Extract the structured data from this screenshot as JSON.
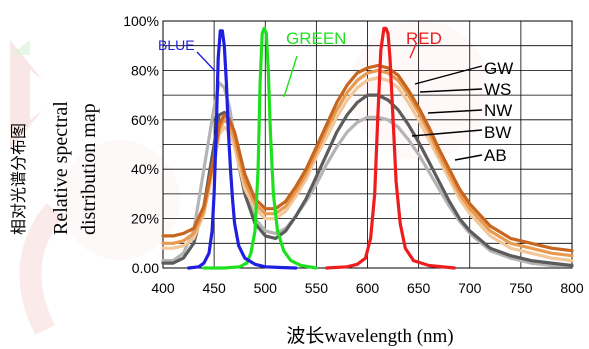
{
  "chart_data": {
    "type": "line",
    "xlabel": "波长wavelength (nm)",
    "ylabel_cjk": "相对光谱分布图",
    "ylabel_en_1": "Relative spectral",
    "ylabel_en_2": "distribution map",
    "x_ticks": [
      "400",
      "450",
      "500",
      "550",
      "600",
      "650",
      "700",
      "750",
      "800"
    ],
    "y_ticks": [
      "0.00",
      "20%",
      "40%",
      "60%",
      "80%",
      "100%"
    ],
    "xlim": [
      400,
      800
    ],
    "ylim": [
      0,
      100
    ],
    "grid": true,
    "colors": {
      "blue": "#1f1fe0",
      "green": "#1fe01f",
      "red": "#ee1c1c",
      "GW": "#c8651e",
      "WS": "#e89a50",
      "NW": "#f2c79a",
      "BW": "#5c5c5c",
      "AB": "#b4b4b4"
    },
    "series": [
      {
        "name": "BLUE",
        "x": [
          425,
          435,
          440,
          445,
          448,
          450,
          452,
          454,
          456,
          458,
          460,
          462,
          464,
          466,
          468,
          470,
          474,
          480,
          490,
          500,
          515,
          530
        ],
        "y": [
          0,
          0.5,
          2,
          6,
          15,
          30,
          55,
          85,
          96,
          96,
          90,
          75,
          55,
          40,
          28,
          18,
          9,
          4,
          1.5,
          0.5,
          0.2,
          0
        ]
      },
      {
        "name": "GREEN",
        "x": [
          440,
          460,
          475,
          482,
          486,
          490,
          493,
          495,
          497,
          499,
          501,
          503,
          505,
          508,
          512,
          518,
          525,
          535,
          550
        ],
        "y": [
          0,
          0,
          0.5,
          2,
          6,
          15,
          40,
          75,
          95,
          97,
          95,
          80,
          55,
          30,
          15,
          7,
          3,
          1,
          0
        ]
      },
      {
        "name": "RED",
        "x": [
          560,
          580,
          590,
          598,
          603,
          607,
          610,
          613,
          616,
          618,
          620,
          622,
          625,
          628,
          632,
          637,
          645,
          660,
          685
        ],
        "y": [
          0,
          0.5,
          1.5,
          4,
          12,
          30,
          60,
          88,
          97,
          97,
          95,
          85,
          60,
          35,
          18,
          8,
          3,
          1,
          0
        ]
      },
      {
        "name": "GW",
        "x": [
          400,
          410,
          420,
          430,
          440,
          450,
          455,
          460,
          465,
          470,
          480,
          490,
          500,
          510,
          520,
          530,
          540,
          550,
          560,
          570,
          580,
          590,
          600,
          610,
          620,
          630,
          640,
          650,
          660,
          670,
          680,
          690,
          700,
          720,
          740,
          760,
          780,
          800
        ],
        "y": [
          13,
          13,
          14,
          16,
          25,
          45,
          58,
          62,
          60,
          55,
          38,
          28,
          24,
          24,
          27,
          33,
          40,
          49,
          58,
          67,
          74,
          79,
          81,
          82,
          81,
          78,
          72,
          65,
          57,
          48,
          40,
          32,
          26,
          17,
          12,
          10,
          8,
          7
        ]
      },
      {
        "name": "WS",
        "x": [
          400,
          410,
          420,
          430,
          440,
          450,
          455,
          460,
          465,
          470,
          480,
          490,
          500,
          510,
          520,
          530,
          540,
          550,
          560,
          570,
          580,
          590,
          600,
          610,
          620,
          630,
          640,
          650,
          660,
          670,
          680,
          690,
          700,
          720,
          740,
          760,
          780,
          800
        ],
        "y": [
          10,
          10,
          11,
          14,
          23,
          44,
          56,
          60,
          58,
          52,
          35,
          26,
          22,
          22,
          25,
          31,
          38,
          47,
          56,
          64,
          71,
          76,
          79,
          80,
          79,
          76,
          70,
          63,
          55,
          46,
          38,
          30,
          24,
          15,
          10,
          8,
          6,
          5
        ]
      },
      {
        "name": "NW",
        "x": [
          400,
          410,
          420,
          430,
          440,
          450,
          455,
          460,
          465,
          470,
          480,
          490,
          500,
          510,
          520,
          530,
          540,
          550,
          560,
          570,
          580,
          590,
          600,
          610,
          620,
          630,
          640,
          650,
          660,
          670,
          680,
          690,
          700,
          720,
          740,
          760,
          780,
          800
        ],
        "y": [
          8,
          8,
          9,
          12,
          22,
          42,
          54,
          57,
          55,
          49,
          32,
          24,
          20,
          20,
          23,
          29,
          36,
          45,
          53,
          61,
          68,
          73,
          76,
          77,
          76,
          73,
          67,
          60,
          52,
          44,
          36,
          28,
          22,
          13,
          8,
          6,
          4,
          3
        ]
      },
      {
        "name": "BW",
        "x": [
          400,
          410,
          420,
          430,
          440,
          450,
          455,
          460,
          465,
          470,
          480,
          490,
          500,
          510,
          520,
          530,
          540,
          550,
          560,
          570,
          580,
          590,
          600,
          610,
          620,
          630,
          640,
          650,
          660,
          670,
          680,
          690,
          700,
          720,
          740,
          760,
          780,
          800
        ],
        "y": [
          2,
          2,
          4,
          10,
          25,
          50,
          62,
          63,
          60,
          50,
          30,
          18,
          13,
          12,
          15,
          21,
          28,
          37,
          46,
          55,
          62,
          67,
          70,
          70,
          68,
          64,
          58,
          51,
          43,
          35,
          27,
          20,
          15,
          8,
          5,
          3,
          2,
          1
        ]
      },
      {
        "name": "AB",
        "x": [
          400,
          410,
          420,
          430,
          440,
          450,
          455,
          460,
          465,
          470,
          480,
          490,
          500,
          510,
          520,
          530,
          540,
          550,
          560,
          570,
          580,
          590,
          600,
          610,
          620,
          630,
          640,
          650,
          660,
          670,
          680,
          690,
          700,
          720,
          740,
          760,
          780,
          800
        ],
        "y": [
          3,
          3,
          6,
          15,
          40,
          65,
          75,
          73,
          65,
          52,
          32,
          20,
          15,
          14,
          16,
          21,
          27,
          34,
          42,
          49,
          55,
          59,
          61,
          61,
          60,
          57,
          52,
          46,
          39,
          32,
          25,
          19,
          14,
          7,
          4,
          2,
          1,
          1
        ]
      }
    ],
    "annotations": [
      {
        "text": "BLUE",
        "color": "#1f1fe0"
      },
      {
        "text": "GREEN",
        "color": "#1fe01f"
      },
      {
        "text": "RED",
        "color": "#ee1c1c"
      },
      {
        "text": "GW",
        "color": "#000000"
      },
      {
        "text": "WS",
        "color": "#000000"
      },
      {
        "text": "NW",
        "color": "#000000"
      },
      {
        "text": "BW",
        "color": "#000000"
      },
      {
        "text": "AB",
        "color": "#000000"
      }
    ]
  }
}
